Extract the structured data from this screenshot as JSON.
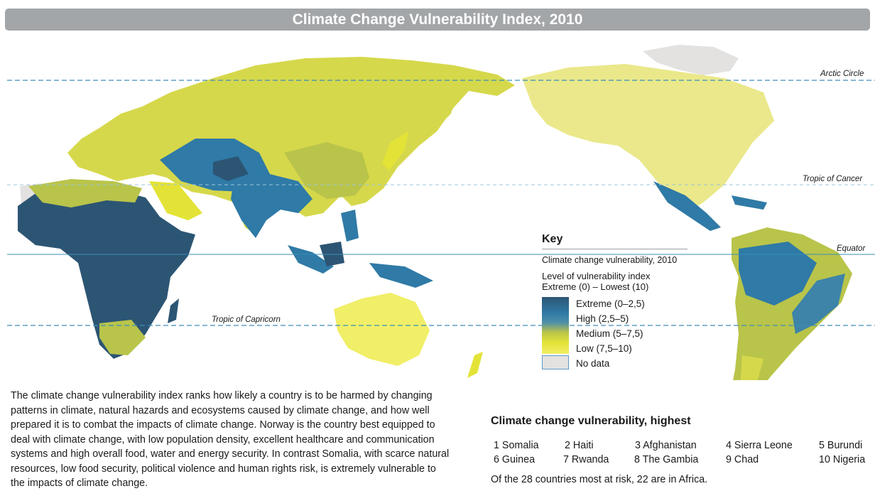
{
  "title": "Climate Change Vulnerability Index, 2010",
  "latitude_lines": {
    "arctic": "Arctic Circle",
    "cancer": "Tropic of Cancer",
    "equator": "Equator",
    "capricorn": "Tropic of Capricorn"
  },
  "key": {
    "heading": "Key",
    "subtitle": "Climate change vulnerability, 2010",
    "description_line1": "Level of vulnerability index",
    "description_line2": "Extreme (0) – Lowest (10)",
    "levels": [
      {
        "label": "Extreme (0–2,5)",
        "color": "#2c5574"
      },
      {
        "label": "High (2,5–5)",
        "color": "#2f7aa6"
      },
      {
        "label": "Medium (5–7,5)",
        "color": "#b9c44a"
      },
      {
        "label": "Low (7,5–10)",
        "color": "#f1ee68"
      },
      {
        "label": "No data",
        "color": "#e4e1e1"
      }
    ]
  },
  "description": "The climate change vulnerability index ranks how likely a country is to be harmed by changing patterns in climate, natural hazards and ecosystems caused by climate change, and how well prepared it is to combat the impacts of climate change. Norway is the country best equipped to deal with climate change, with low population density, excellent healthcare and communication systems and high overall food, water and energy security. In contrast Somalia, with scarce natural resources, low food security, political violence and human rights risk, is extremely vulnerable to the impacts of climate change.",
  "highest": {
    "title": "Climate change vulnerability, highest",
    "ranking": [
      "1 Somalia",
      "2 Haiti",
      "3 Afghanistan",
      "4 Sierra Leone",
      "5 Burundi",
      "6 Guinea",
      "7 Rwanda",
      "8 The Gambia",
      "9 Chad",
      "10 Nigeria"
    ],
    "note": "Of the 28 countries most at risk, 22 are in Africa."
  }
}
